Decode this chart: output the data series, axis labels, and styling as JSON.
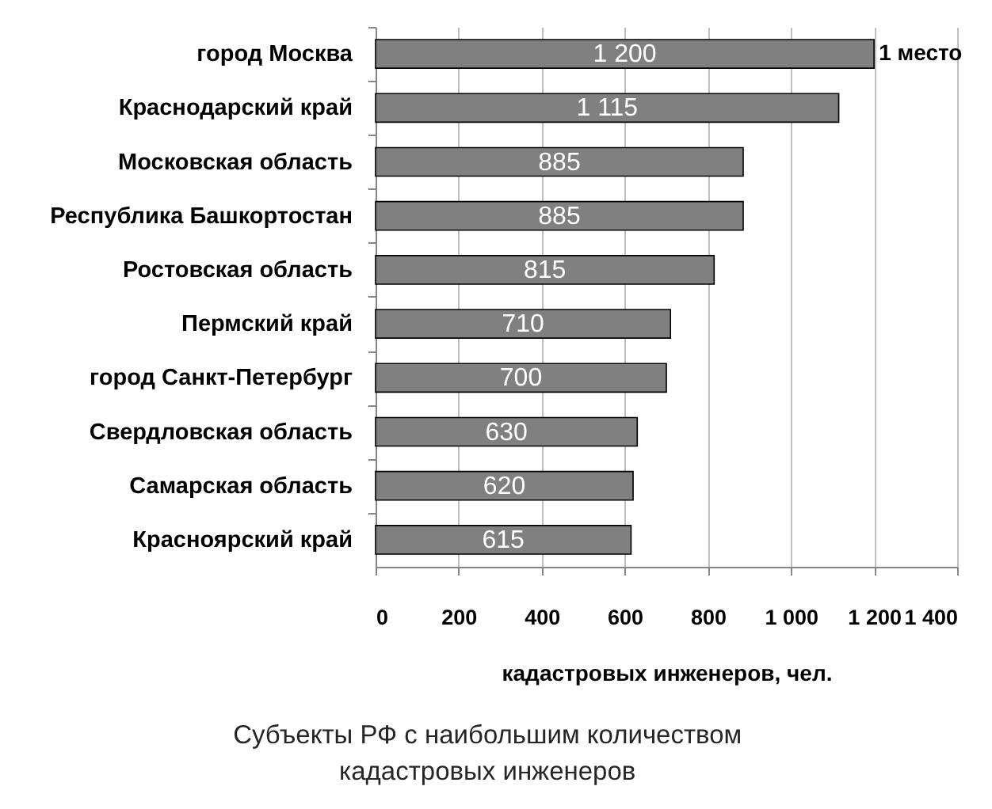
{
  "chart_data": {
    "type": "bar",
    "orientation": "horizontal",
    "title": "Субъекты РФ с наибольшим количеством кадастровых инженеров",
    "xlabel": "кадастровых инженеров, чел.",
    "categories": [
      "город Москва",
      "Краснодарский край",
      "Московская область",
      "Республика Башкортостан",
      "Ростовская область",
      "Пермский край",
      "город Санкт-Петербург",
      "Свердловская область",
      "Самарская область",
      "Красноярский край"
    ],
    "values": [
      1200,
      1115,
      885,
      885,
      815,
      710,
      700,
      630,
      620,
      615
    ],
    "value_labels": [
      "1 200",
      "1 115",
      "885",
      "885",
      "815",
      "710",
      "700",
      "630",
      "620",
      "615"
    ],
    "color": "#808080",
    "xlim": [
      0,
      1400
    ],
    "xticks": [
      0,
      200,
      400,
      600,
      800,
      {
        "value": 1000,
        "label": "1 000"
      },
      {
        "value": 1200,
        "label": "1 200"
      },
      {
        "value": 1400,
        "label": "1 400"
      }
    ],
    "grid": "x",
    "annotations": [
      {
        "text": "1 место",
        "x": 1200,
        "y": "город Москва"
      }
    ]
  }
}
